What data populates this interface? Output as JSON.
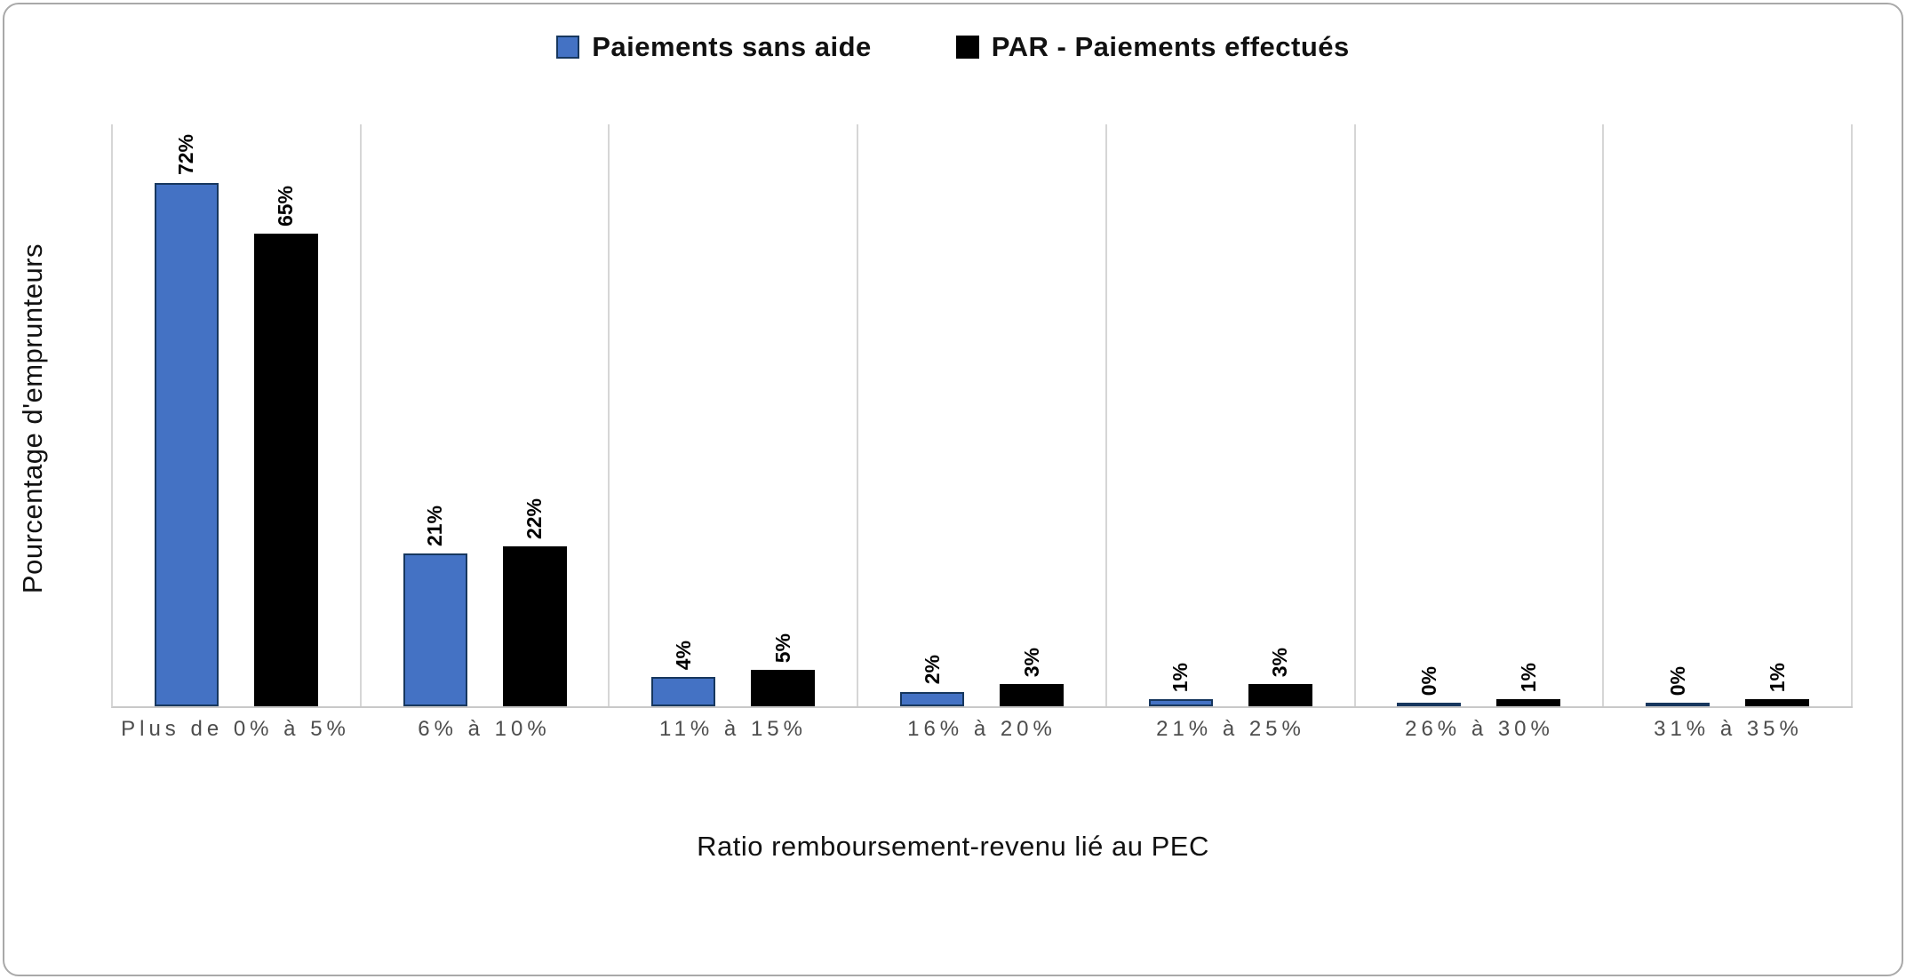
{
  "chart_data": {
    "type": "bar",
    "title": "",
    "categories": [
      "Plus de 0% à 5%",
      "6% à 10%",
      "11% à 15%",
      "16% à 20%",
      "21% à 25%",
      "26% à 30%",
      "31% à 35%"
    ],
    "series": [
      {
        "name": "Paiements sans aide",
        "color": "#4472c4",
        "border_color": "#17375e",
        "values": [
          72,
          21,
          4,
          2,
          1,
          0,
          0
        ],
        "labels": [
          "72%",
          "21%",
          "4%",
          "2%",
          "1%",
          "0%",
          "0%"
        ]
      },
      {
        "name": "PAR - Paiements effectués",
        "color": "#000000",
        "border_color": "#000000",
        "values": [
          65,
          22,
          5,
          3,
          3,
          1,
          1
        ],
        "labels": [
          "65%",
          "22%",
          "5%",
          "3%",
          "3%",
          "1%",
          "1%"
        ]
      }
    ],
    "xlabel": "Ratio remboursement-revenu lié au PEC",
    "ylabel": "Pourcentage d'emprunteurs",
    "ylim": [
      0,
      80
    ],
    "grid": "vertical-separators",
    "legend_position": "top"
  }
}
